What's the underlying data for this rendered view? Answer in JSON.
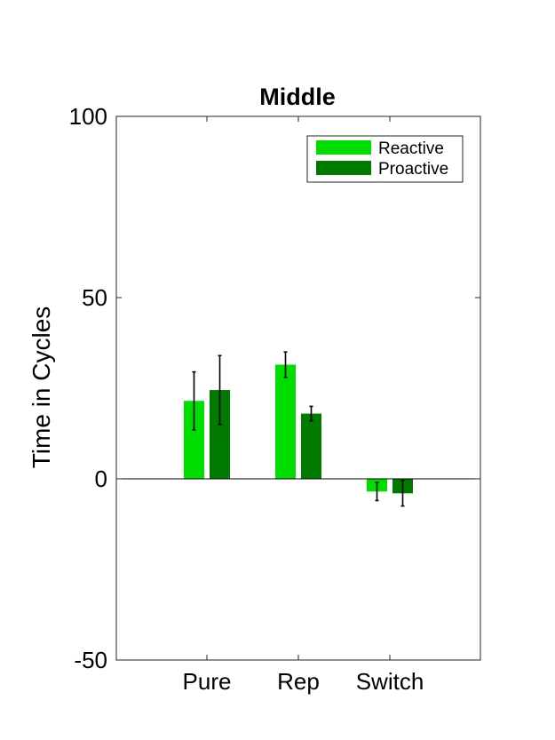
{
  "chart_data": {
    "type": "bar",
    "title": "Middle",
    "xlabel": "",
    "ylabel": "Time in Cycles",
    "ylim": [
      -50,
      100
    ],
    "yticks": [
      -50,
      0,
      50,
      100
    ],
    "categories": [
      "Pure",
      "Rep",
      "Switch"
    ],
    "series": [
      {
        "name": "Reactive",
        "color": "#00dd00",
        "values": [
          21.5,
          31.5,
          -3.5
        ],
        "errors": [
          8,
          3.5,
          2.5
        ]
      },
      {
        "name": "Proactive",
        "color": "#007b00",
        "values": [
          24.5,
          18,
          -4
        ],
        "errors": [
          9.5,
          2,
          3.5
        ]
      }
    ],
    "legend_position": "top-right",
    "grid": false
  }
}
